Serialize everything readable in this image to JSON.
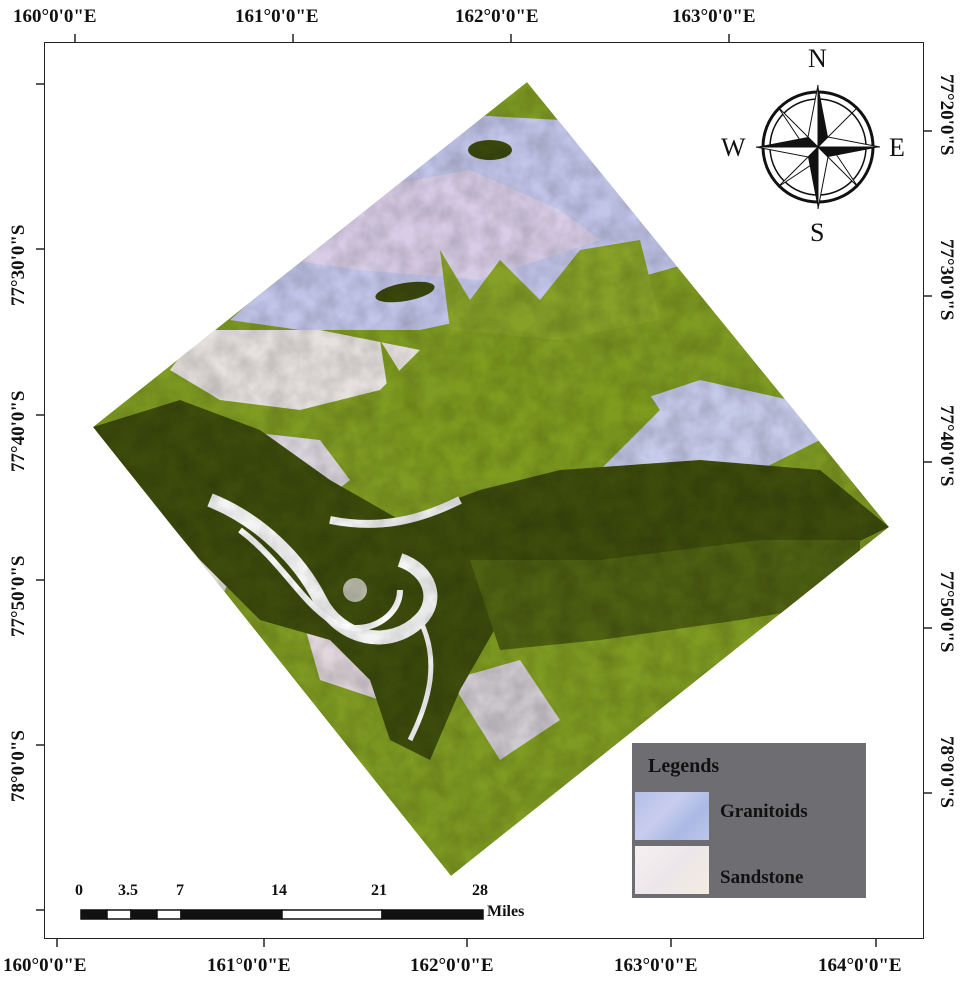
{
  "map": {
    "top_labels": [
      "160°0'0\"E",
      "161°0'0\"E",
      "162°0'0\"E",
      "163°0'0\"E"
    ],
    "bottom_labels": [
      "160°0'0\"E",
      "161°0'0\"E",
      "162°0'0\"E",
      "163°0'0\"E",
      "164°0'0\"E"
    ],
    "left_labels": [
      "77°30'0\"S",
      "77°40'0\"S",
      "77°50'0\"S",
      "78°0'0\"S"
    ],
    "right_labels": [
      "77°20'0\"S",
      "77°30'0\"S",
      "77°40'0\"S",
      "77°50'0\"S",
      "78°0'0\"S"
    ],
    "colors": {
      "vegetation_olive": "#7d9a1e",
      "dark_olive": "#3e4d0c",
      "granitoids": "#b9bfe6",
      "sandstone": "#efe7ea",
      "legend_bg": "#6e6d72"
    }
  },
  "compass": {
    "north": "N",
    "south": "S",
    "east": "E",
    "west": "W"
  },
  "legend": {
    "title": "Legends",
    "items": [
      {
        "label": "Granitoids",
        "color": "#b7c2ea"
      },
      {
        "label": "Sandstone",
        "color": "#f3eded"
      }
    ]
  },
  "scale_bar": {
    "ticks": [
      "0",
      "3.5",
      "7",
      "14",
      "21",
      "28"
    ],
    "unit": "Miles"
  }
}
